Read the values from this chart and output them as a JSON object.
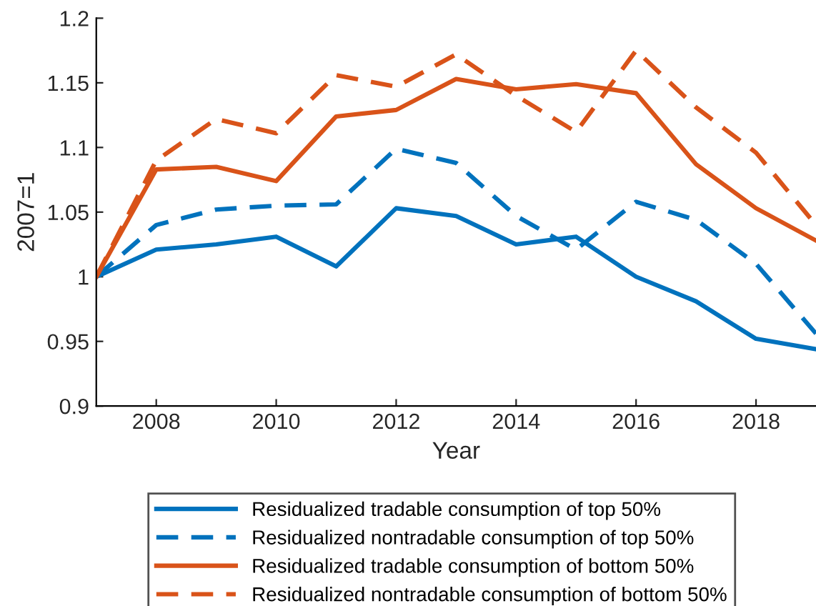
{
  "chart_data": {
    "type": "line",
    "xlabel": "Year",
    "ylabel": "2007=1",
    "x": [
      2007,
      2008,
      2009,
      2010,
      2011,
      2012,
      2013,
      2014,
      2015,
      2016,
      2017,
      2018,
      2019
    ],
    "xlim": [
      2007,
      2019
    ],
    "xticks": [
      2008,
      2010,
      2012,
      2014,
      2016,
      2018
    ],
    "ylim": [
      0.9,
      1.2
    ],
    "yticks": [
      0.9,
      0.95,
      1,
      1.05,
      1.1,
      1.15,
      1.2
    ],
    "grid": false,
    "legend": "bottom",
    "marker": "none",
    "series": [
      {
        "name": "Residualized tradable consumption of top 50%",
        "color": "#0072bd",
        "line_style": "solid",
        "values": [
          1.0,
          1.021,
          1.025,
          1.031,
          1.008,
          1.053,
          1.047,
          1.025,
          1.031,
          1.0,
          0.981,
          0.952,
          0.944
        ]
      },
      {
        "name": "Residualized nontradable consumption of top 50%",
        "color": "#0072bd",
        "line_style": "dashed",
        "values": [
          1.0,
          1.04,
          1.052,
          1.055,
          1.056,
          1.099,
          1.088,
          1.047,
          1.021,
          1.058,
          1.044,
          1.01,
          0.956
        ]
      },
      {
        "name": "Residualized tradable consumption of bottom 50%",
        "color": "#d95319",
        "line_style": "solid",
        "values": [
          1.0,
          1.083,
          1.085,
          1.074,
          1.124,
          1.129,
          1.153,
          1.145,
          1.149,
          1.142,
          1.087,
          1.053,
          1.028
        ]
      },
      {
        "name": "Residualized nontradable consumption of bottom 50%",
        "color": "#d95319",
        "line_style": "dashed",
        "values": [
          1.0,
          1.09,
          1.122,
          1.111,
          1.156,
          1.147,
          1.172,
          1.14,
          1.112,
          1.175,
          1.131,
          1.096,
          1.04
        ]
      }
    ]
  }
}
